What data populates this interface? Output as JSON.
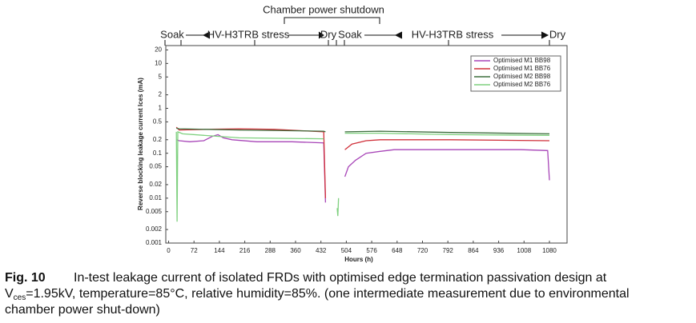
{
  "chart_data": {
    "type": "line",
    "annotations": [
      "Chamber power shutdown",
      "Soak",
      "HV-H3TRB stress",
      "Dry",
      "Soak",
      "HV-H3TRB stress",
      "Dry"
    ],
    "xlabel": "Hours (h)",
    "ylabel": "Reverse blocking leakage current Ices (mA)",
    "caption": {
      "label": "Fig. 10",
      "line1": "In-test leakage current of isolated FRDs with optimised edge termination passivation design at",
      "v": "V",
      "sub": "ces",
      "line2": "=1.95kV, temperature=85°C, relative humidity=85%. (one intermediate measurement due to environmental",
      "line3": "chamber power shut-down)"
    },
    "log_y": true,
    "grid": false,
    "legend": "upper right",
    "xlim": [
      -8,
      1130
    ],
    "xticks": [
      0,
      72,
      144,
      216,
      288,
      360,
      432,
      504,
      576,
      648,
      720,
      792,
      864,
      936,
      1008,
      1080
    ],
    "ylim": [
      0.001,
      25
    ],
    "yticks": [
      0.001,
      0.002,
      0.005,
      0.01,
      0.02,
      0.05,
      0.1,
      0.2,
      0.5,
      1,
      2,
      5,
      10,
      20
    ],
    "series": [
      {
        "name": "Optimised M1 BB98",
        "color": "#a846b8",
        "x": [
          22,
          30,
          60,
          100,
          125,
          140,
          155,
          180,
          250,
          350,
          440,
          445,
          null,
          500,
          510,
          530,
          560,
          600,
          640,
          800,
          1000,
          1075,
          1080
        ],
        "values": [
          0.2,
          0.19,
          0.18,
          0.19,
          0.24,
          0.26,
          0.22,
          0.2,
          0.18,
          0.18,
          0.17,
          0.008,
          null,
          0.03,
          0.05,
          0.07,
          0.1,
          0.11,
          0.12,
          0.12,
          0.12,
          0.115,
          0.025
        ]
      },
      {
        "name": "Optimised M1 BB76",
        "color": "#d0303a",
        "x": [
          22,
          30,
          100,
          200,
          300,
          440,
          445,
          null,
          500,
          520,
          560,
          600,
          800,
          1080
        ],
        "values": [
          0.38,
          0.33,
          0.34,
          0.35,
          0.34,
          0.3,
          0.01,
          null,
          0.12,
          0.16,
          0.19,
          0.2,
          0.2,
          0.19
        ]
      },
      {
        "name": "Optimised M2 BB98",
        "color": "#3d6e3d",
        "x": [
          22,
          30,
          200,
          440,
          445,
          null,
          500,
          600,
          800,
          1080
        ],
        "values": [
          0.36,
          0.35,
          0.33,
          0.31,
          0.3,
          null,
          0.3,
          0.31,
          0.29,
          0.27
        ]
      },
      {
        "name": "Optimised M2 BB76",
        "color": "#7fd07f",
        "x": [
          22,
          24,
          26,
          40,
          200,
          440,
          null,
          478,
          480,
          482,
          null,
          500,
          600,
          800,
          1080
        ],
        "values": [
          0.3,
          0.003,
          0.3,
          0.27,
          0.22,
          0.21,
          null,
          0.006,
          0.004,
          0.01,
          null,
          0.28,
          0.28,
          0.26,
          0.25
        ]
      }
    ]
  }
}
